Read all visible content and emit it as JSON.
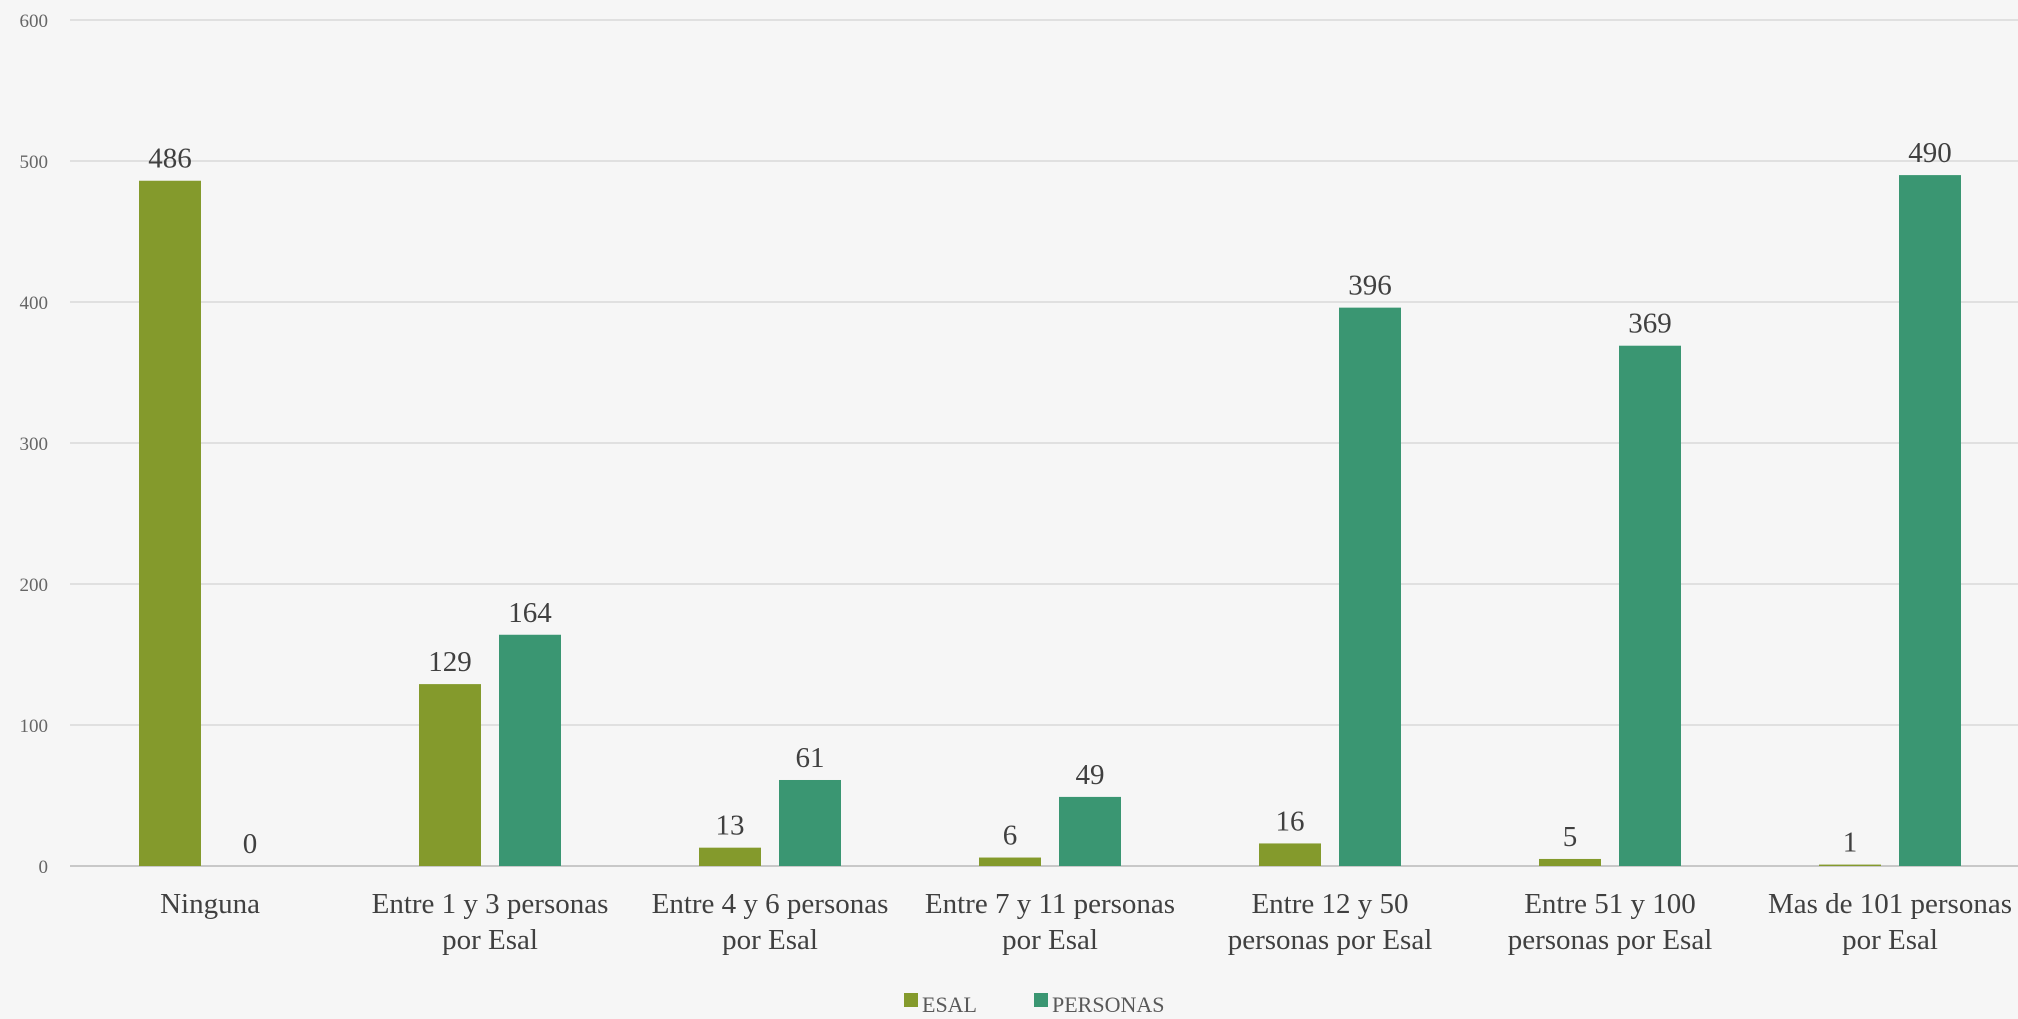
{
  "chart_data": {
    "type": "bar",
    "title": "",
    "xlabel": "",
    "ylabel": "",
    "ylim": [
      0,
      600
    ],
    "yticks": [
      0,
      100,
      200,
      300,
      400,
      500,
      600
    ],
    "grid": true,
    "legend_position": "bottom",
    "categories": [
      [
        "Ninguna"
      ],
      [
        "Entre 1 y 3 personas",
        "por Esal"
      ],
      [
        "Entre 4 y 6 personas",
        "por Esal"
      ],
      [
        "Entre 7 y 11 personas",
        "por Esal"
      ],
      [
        "Entre 12 y 50",
        "personas por Esal"
      ],
      [
        "Entre 51 y 100",
        "personas por Esal"
      ],
      [
        "Mas de 101 personas",
        "por Esal"
      ]
    ],
    "series": [
      {
        "name": "ESAL",
        "color": "#849a2c",
        "values": [
          486,
          129,
          13,
          6,
          16,
          5,
          1
        ]
      },
      {
        "name": "PERSONAS",
        "color": "#3a9672",
        "values": [
          0,
          164,
          61,
          49,
          396,
          369,
          490
        ]
      }
    ]
  }
}
